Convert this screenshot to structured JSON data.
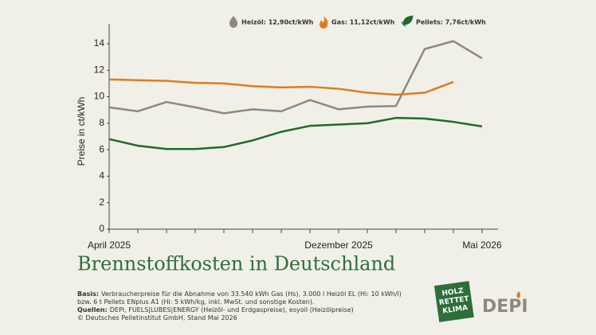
{
  "chart_data": {
    "type": "line",
    "title": "Brennstoffkosten in Deutschland",
    "y_label": "Preise in ct/kWh",
    "categories": [
      "April 2025",
      null,
      null,
      null,
      null,
      null,
      null,
      null,
      "Dezember 2025",
      null,
      null,
      null,
      null,
      "Mai 2026"
    ],
    "series": [
      {
        "name": "Heizöl: 12,90ct/kWh",
        "color": "#8d897d",
        "values": [
          9.2,
          8.9,
          9.6,
          9.2,
          8.75,
          9.05,
          8.9,
          9.75,
          9.05,
          9.25,
          9.3,
          13.6,
          14.2,
          12.9
        ]
      },
      {
        "name": "Gas: 11,12ct/kWh",
        "color": "#e07b1f",
        "values": [
          11.3,
          11.25,
          11.2,
          11.05,
          11.0,
          10.8,
          10.7,
          10.75,
          10.6,
          10.3,
          10.15,
          10.3,
          11.12,
          null
        ]
      },
      {
        "name": "Pellets: 7,76ct/kWh",
        "color": "#1e6b2e",
        "values": [
          6.8,
          6.3,
          6.05,
          6.05,
          6.2,
          6.7,
          7.35,
          7.8,
          7.9,
          8.0,
          8.4,
          8.35,
          8.1,
          7.76
        ]
      }
    ],
    "ylim": [
      0,
      15.5
    ],
    "yticks": [
      0,
      2,
      4,
      6,
      8,
      10,
      12,
      14
    ],
    "grid": false
  },
  "notes": [
    {
      "label": "Basis:",
      "text": "Verbraucherpreise für die Abnahme von 33.540 kWh Gas (Hs), 3.000 l Heizöl EL (Hi: 10 kWh/l)"
    },
    {
      "label": null,
      "text": "bzw. 6 t Pellets ENplus A1 (Hi: 5 kWh/kg, inkl. MwSt. und sonstige Kosten)."
    },
    {
      "label": "Quellen:",
      "text": "DEPI, FUELS|LUBES|ENERGY (Heizöl- und Erdgaspreise), esyoil (Heizölpreise)"
    },
    {
      "label": null,
      "text": "© Deutsches Pelletinstitut GmbH, Stand Mai 2026"
    }
  ],
  "logos": {
    "badge": [
      "HOLZ",
      "RETTET",
      "KLIMA"
    ],
    "brand": "DEPI"
  }
}
